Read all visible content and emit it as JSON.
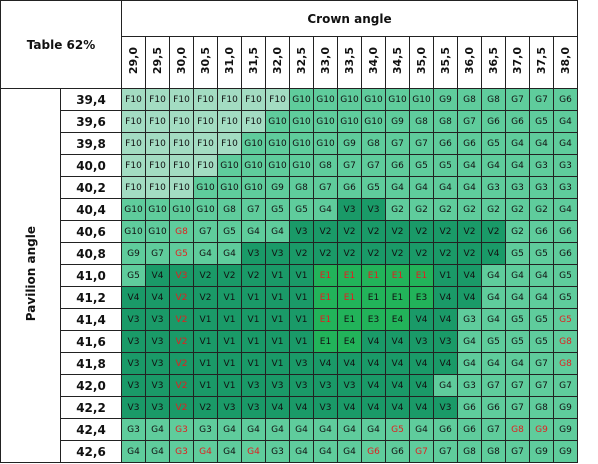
{
  "header": {
    "title": "Table 62%",
    "column_group": "Crown angle",
    "row_group": "Pavilion angle"
  },
  "columns": [
    "29,0",
    "29,5",
    "30,0",
    "30,5",
    "31,0",
    "31,5",
    "32,0",
    "32,5",
    "33,0",
    "33,5",
    "34,0",
    "34,5",
    "35,0",
    "35,5",
    "36,0",
    "36,5",
    "37,0",
    "37,5",
    "38,0"
  ],
  "rows": [
    {
      "label": "39,4",
      "cells": [
        "F10",
        "F10",
        "F10",
        "F10",
        "F10",
        "F10",
        "F10",
        "G10",
        "G10",
        "G10",
        "G10",
        "G10",
        "G10",
        "G9",
        "G8",
        "G8",
        "G7",
        "G7",
        "G6"
      ]
    },
    {
      "label": "39,6",
      "cells": [
        "F10",
        "F10",
        "F10",
        "F10",
        "F10",
        "F10",
        "G10",
        "G10",
        "G10",
        "G10",
        "G10",
        "G9",
        "G8",
        "G8",
        "G7",
        "G6",
        "G6",
        "G5",
        "G4"
      ]
    },
    {
      "label": "39,8",
      "cells": [
        "F10",
        "F10",
        "F10",
        "F10",
        "F10",
        "G10",
        "G10",
        "G10",
        "G10",
        "G9",
        "G8",
        "G7",
        "G7",
        "G6",
        "G6",
        "G5",
        "G4",
        "G4",
        "G4"
      ]
    },
    {
      "label": "40,0",
      "cells": [
        "F10",
        "F10",
        "F10",
        "F10",
        "G10",
        "G10",
        "G10",
        "G10",
        "G8",
        "G7",
        "G7",
        "G6",
        "G5",
        "G5",
        "G4",
        "G4",
        "G4",
        "G3",
        "G3"
      ]
    },
    {
      "label": "40,2",
      "cells": [
        "F10",
        "F10",
        "F10",
        "G10",
        "G10",
        "G10",
        "G9",
        "G8",
        "G7",
        "G6",
        "G5",
        "G4",
        "G4",
        "G4",
        "G4",
        "G3",
        "G3",
        "G3",
        "G3"
      ]
    },
    {
      "label": "40,4",
      "cells": [
        "G10",
        "G10",
        "G10",
        "G10",
        "G8",
        "G7",
        "G5",
        "G5",
        "G4",
        "V3",
        "V3",
        "G2",
        "G2",
        "G2",
        "G2",
        "G2",
        "G2",
        "G2",
        "G4"
      ]
    },
    {
      "label": "40,6",
      "cells": [
        "G10",
        "G10",
        {
          "text": "G8",
          "color": "red"
        },
        "G7",
        "G5",
        "G4",
        "G4",
        "V3",
        "V2",
        "V2",
        "V2",
        "V2",
        "V2",
        "V2",
        "V2",
        "V2",
        "G2",
        "G6",
        "G6"
      ]
    },
    {
      "label": "40,8",
      "cells": [
        "G9",
        "G7",
        {
          "text": "G5",
          "color": "red"
        },
        "G4",
        "G4",
        "V3",
        "V3",
        "V2",
        "V2",
        "V2",
        "V2",
        "V2",
        "V2",
        "V2",
        "V2",
        "V4",
        "G5",
        "G5",
        "G6"
      ]
    },
    {
      "label": "41,0",
      "cells": [
        "G5",
        "V4",
        {
          "text": "V3",
          "color": "red"
        },
        "V2",
        "V2",
        "V2",
        "V1",
        "V1",
        {
          "text": "E1",
          "color": "red"
        },
        {
          "text": "E1",
          "color": "red"
        },
        {
          "text": "E1",
          "color": "red"
        },
        {
          "text": "E1",
          "color": "red"
        },
        {
          "text": "E1",
          "color": "red"
        },
        "V1",
        "V4",
        "G4",
        "G4",
        "G4",
        "G5"
      ]
    },
    {
      "label": "41,2",
      "cells": [
        "V4",
        "V4",
        {
          "text": "V2",
          "color": "red"
        },
        "V2",
        "V1",
        "V1",
        "V1",
        "V1",
        {
          "text": "E1",
          "color": "red"
        },
        {
          "text": "E1",
          "color": "red"
        },
        "E1",
        "E1",
        "E3",
        "V4",
        "V4",
        "G4",
        "G4",
        "G4",
        "G5"
      ]
    },
    {
      "label": "41,4",
      "cells": [
        "V3",
        "V3",
        {
          "text": "V2",
          "color": "red"
        },
        "V1",
        "V1",
        "V1",
        "V1",
        "V1",
        {
          "text": "E1",
          "color": "red"
        },
        "E1",
        "E3",
        "E4",
        "V4",
        "V4",
        "G3",
        "G4",
        "G5",
        "G5",
        {
          "text": "G5",
          "color": "red"
        }
      ]
    },
    {
      "label": "41,6",
      "cells": [
        "V3",
        "V3",
        {
          "text": "V2",
          "color": "red"
        },
        "V1",
        "V1",
        "V1",
        "V1",
        "V1",
        "E1",
        "E4",
        "V4",
        "V4",
        "V3",
        "V3",
        "G4",
        "G5",
        "G5",
        "G5",
        {
          "text": "G8",
          "color": "red"
        }
      ]
    },
    {
      "label": "41,8",
      "cells": [
        "V3",
        "V3",
        {
          "text": "V2",
          "color": "red"
        },
        "V1",
        "V1",
        "V1",
        "V1",
        "V3",
        "V4",
        "V4",
        "V4",
        "V4",
        "V4",
        "V4",
        "G4",
        "G4",
        "G4",
        "G7",
        {
          "text": "G8",
          "color": "red"
        }
      ]
    },
    {
      "label": "42,0",
      "cells": [
        "V3",
        "V3",
        {
          "text": "V2",
          "color": "red"
        },
        "V1",
        "V1",
        "V3",
        "V3",
        "V3",
        "V3",
        "V3",
        "V4",
        "V4",
        "V4",
        "G4",
        "G3",
        "G7",
        "G7",
        "G7",
        "G7"
      ]
    },
    {
      "label": "42,2",
      "cells": [
        "V3",
        "V3",
        {
          "text": "V2",
          "color": "red"
        },
        "V2",
        "V3",
        "V3",
        "V4",
        "V4",
        "V3",
        "V4",
        "V4",
        "V4",
        "V4",
        "V3",
        "G6",
        "G6",
        "G7",
        "G8",
        "G9"
      ]
    },
    {
      "label": "42,4",
      "cells": [
        "G3",
        "G4",
        {
          "text": "G3",
          "color": "red"
        },
        "G3",
        "G4",
        "G4",
        "G4",
        "G4",
        "G4",
        "G4",
        "G4",
        {
          "text": "G5",
          "color": "red"
        },
        "G4",
        "G6",
        "G6",
        "G7",
        {
          "text": "G8",
          "color": "red"
        },
        {
          "text": "G9",
          "color": "red"
        },
        "G9"
      ]
    },
    {
      "label": "42,6",
      "cells": [
        "G4",
        "G4",
        {
          "text": "G3",
          "color": "red"
        },
        {
          "text": "G4",
          "color": "red"
        },
        "G4",
        {
          "text": "G4",
          "color": "red"
        },
        "G3",
        "G4",
        "G4",
        "G4",
        {
          "text": "G6",
          "color": "red"
        },
        "G6",
        {
          "text": "G7",
          "color": "red"
        },
        "G7",
        "G8",
        "G8",
        "G7",
        "G9",
        "G9"
      ]
    }
  ]
}
